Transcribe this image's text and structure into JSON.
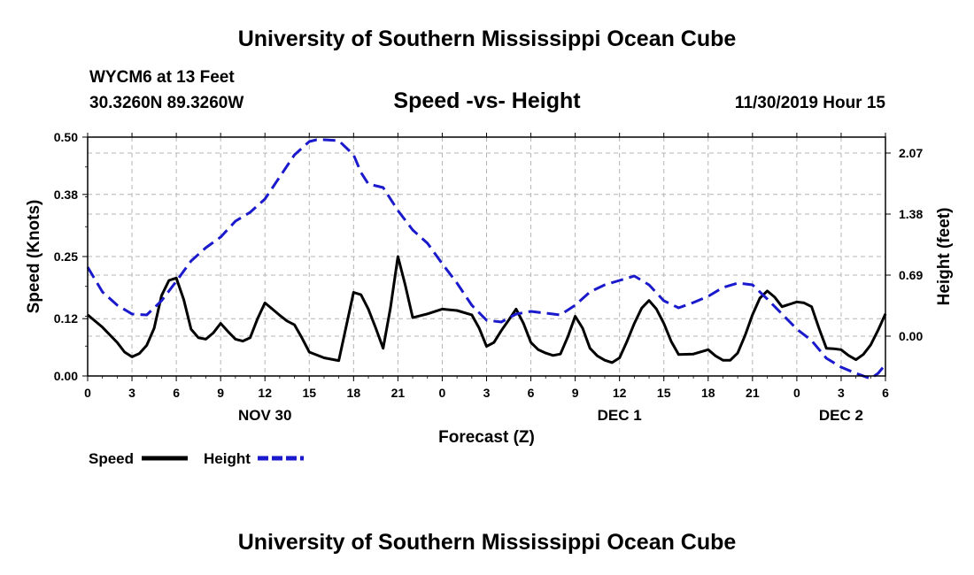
{
  "header": {
    "title": "University of Southern Mississippi Ocean Cube",
    "station": "WYCM6 at 13 Feet",
    "coords": "30.3260N 89.3260W",
    "subtitle": "Speed -vs- Height",
    "datetime": "11/30/2019 Hour 15"
  },
  "footer": {
    "title": "University of Southern Mississippi Ocean Cube"
  },
  "colors": {
    "speed": "#000000",
    "height": "#1a1acc",
    "grid": "#b4b4b4"
  },
  "chart_data": {
    "type": "line",
    "title": "Speed -vs- Height",
    "xlabel": "Forecast (Z)",
    "ylabel": "Speed (Knots)",
    "y2label": "Height (feet)",
    "x_range": [
      0,
      54
    ],
    "xticks": [
      0,
      3,
      6,
      9,
      12,
      15,
      18,
      21,
      24,
      27,
      30,
      33,
      36,
      39,
      42,
      45,
      48,
      51,
      54
    ],
    "xtick_labels": [
      "0",
      "3",
      "6",
      "9",
      "12",
      "15",
      "18",
      "21",
      "0",
      "3",
      "6",
      "9",
      "12",
      "15",
      "18",
      "21",
      "0",
      "3",
      "6"
    ],
    "day_labels": [
      {
        "x": 12,
        "label": "NOV 30"
      },
      {
        "x": 36,
        "label": "DEC 1"
      },
      {
        "x": 51,
        "label": "DEC 2"
      }
    ],
    "ylim": [
      0,
      0.5
    ],
    "yticks": [
      0.0,
      0.12,
      0.25,
      0.38,
      0.5
    ],
    "ytick_labels": [
      "0.00",
      "0.12",
      "0.25",
      "0.38",
      "0.50"
    ],
    "y2lim": [
      -0.45,
      2.25
    ],
    "y2ticks": [
      0.0,
      0.69,
      1.38,
      2.07
    ],
    "y2tick_labels": [
      "0.00",
      "0.69",
      "1.38",
      "2.07"
    ],
    "grid": true,
    "legend": [
      {
        "name": "Speed",
        "style": "solid"
      },
      {
        "name": "Height",
        "style": "dashed"
      }
    ],
    "series": [
      {
        "name": "Speed",
        "axis": "left",
        "style": "solid",
        "x": [
          0,
          1,
          2,
          2.5,
          3,
          3.5,
          4,
          4.5,
          5,
          5.5,
          6,
          6.5,
          7,
          7.5,
          8,
          8.5,
          9,
          9.5,
          10,
          10.5,
          11,
          11.5,
          12,
          12.5,
          13,
          13.5,
          14,
          14.5,
          15,
          16,
          17,
          18,
          18.5,
          19,
          19.5,
          20,
          20.5,
          21,
          21.5,
          22,
          23,
          24,
          25,
          26,
          26.5,
          27,
          27.5,
          28,
          28.5,
          29,
          29.5,
          30,
          30.5,
          31,
          31.5,
          32,
          32.5,
          33,
          33.5,
          34,
          34.5,
          35,
          35.5,
          36,
          36.5,
          37,
          37.5,
          38,
          38.5,
          39,
          39.5,
          40,
          41,
          42,
          42.5,
          43,
          43.5,
          44,
          44.5,
          45,
          45.5,
          46,
          46.5,
          47,
          47.5,
          48,
          48.5,
          49,
          49.5,
          50,
          50.5,
          51,
          51.5,
          52,
          52.5,
          53,
          53.5,
          54
        ],
        "values": [
          0.128,
          0.102,
          0.07,
          0.05,
          0.04,
          0.047,
          0.064,
          0.1,
          0.168,
          0.2,
          0.205,
          0.16,
          0.098,
          0.08,
          0.077,
          0.09,
          0.11,
          0.093,
          0.077,
          0.073,
          0.08,
          0.12,
          0.153,
          0.14,
          0.127,
          0.115,
          0.107,
          0.08,
          0.05,
          0.038,
          0.032,
          0.175,
          0.17,
          0.14,
          0.1,
          0.058,
          0.143,
          0.25,
          0.19,
          0.122,
          0.13,
          0.14,
          0.137,
          0.128,
          0.1,
          0.062,
          0.07,
          0.095,
          0.117,
          0.14,
          0.11,
          0.07,
          0.055,
          0.048,
          0.043,
          0.046,
          0.082,
          0.125,
          0.1,
          0.058,
          0.042,
          0.033,
          0.028,
          0.038,
          0.072,
          0.11,
          0.142,
          0.158,
          0.14,
          0.11,
          0.072,
          0.045,
          0.046,
          0.055,
          0.042,
          0.033,
          0.033,
          0.048,
          0.085,
          0.128,
          0.163,
          0.178,
          0.165,
          0.145,
          0.15,
          0.155,
          0.153,
          0.145,
          0.1,
          0.058,
          0.057,
          0.055,
          0.043,
          0.034,
          0.045,
          0.065,
          0.096,
          0.13
        ]
      },
      {
        "name": "Height",
        "axis": "right",
        "style": "dashed",
        "x": [
          0,
          1,
          2,
          3,
          4,
          5,
          6,
          7,
          8,
          9,
          10,
          11,
          12,
          13,
          14,
          15,
          15.5,
          16,
          17,
          18,
          18.5,
          19,
          20,
          21,
          22,
          23,
          24,
          25,
          26,
          27,
          28,
          29,
          30,
          31,
          32,
          33,
          34,
          35,
          36,
          37,
          38,
          39,
          40,
          41,
          42,
          43,
          44,
          45,
          46,
          47,
          48,
          49,
          50,
          51,
          52,
          53,
          53.5,
          54
        ],
        "values": [
          0.78,
          0.5,
          0.35,
          0.25,
          0.24,
          0.4,
          0.62,
          0.85,
          1.0,
          1.12,
          1.3,
          1.4,
          1.55,
          1.8,
          2.05,
          2.2,
          2.22,
          2.22,
          2.21,
          2.05,
          1.85,
          1.72,
          1.68,
          1.42,
          1.2,
          1.05,
          0.82,
          0.6,
          0.35,
          0.18,
          0.16,
          0.25,
          0.28,
          0.26,
          0.24,
          0.35,
          0.5,
          0.58,
          0.63,
          0.68,
          0.58,
          0.4,
          0.32,
          0.38,
          0.45,
          0.55,
          0.6,
          0.58,
          0.42,
          0.25,
          0.08,
          -0.05,
          -0.25,
          -0.35,
          -0.42,
          -0.48,
          -0.42,
          -0.32
        ]
      }
    ]
  }
}
